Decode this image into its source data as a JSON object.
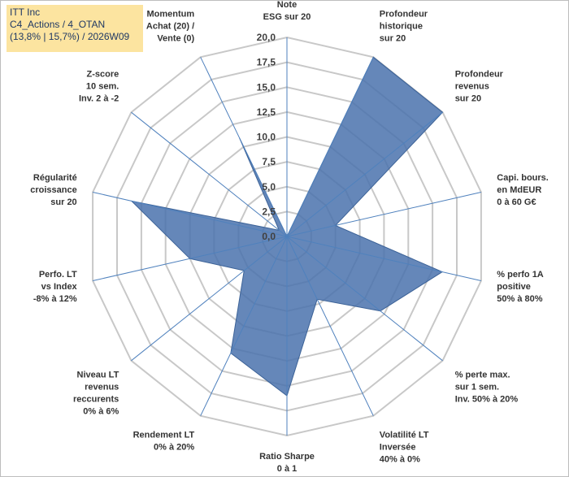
{
  "info_box": {
    "line1": "ITT Inc",
    "line2": "C4_Actions / 4_OTAN",
    "line3": "(13,8% | 15,7%) / 2026W09"
  },
  "chart_data": {
    "type": "radar",
    "title": "",
    "rmin": 0,
    "rmax": 20,
    "tick_labels": [
      "0,0",
      "2,5",
      "5,0",
      "7,5",
      "10,0",
      "12,5",
      "15,0",
      "17,5",
      "20,0"
    ],
    "grid": true,
    "series": [
      {
        "color": "#4a72ad",
        "axes": [
          {
            "label": [
              "Note",
              "ESG sur 20"
            ],
            "value": 0
          },
          {
            "label": [
              "Profondeur",
              "historique",
              "sur 20"
            ],
            "value": 20
          },
          {
            "label": [
              "Profondeur",
              "revenus",
              "sur 20"
            ],
            "value": 20
          },
          {
            "label": [
              "Capi. bours.",
              "en MdEUR",
              "0 à 60 G€"
            ],
            "value": 5
          },
          {
            "label": [
              "% perfo 1A",
              "positive",
              "50% à 80%"
            ],
            "value": 16
          },
          {
            "label": [
              "% perte max.",
              "sur 1 sem.",
              "Inv. 50% à 20%"
            ],
            "value": 12
          },
          {
            "label": [
              "Volatilité LT",
              "Inversée",
              "40% à 0%"
            ],
            "value": 7
          },
          {
            "label": [
              "Ratio Sharpe",
              "0 à 1"
            ],
            "value": 16
          },
          {
            "label": [
              "Rendement LT",
              "0% à 20%"
            ],
            "value": 13
          },
          {
            "label": [
              "Niveau LT",
              "revenus",
              "reccurents",
              "0% à 6%"
            ],
            "value": 5.5
          },
          {
            "label": [
              "Perfo. LT",
              "vs Index",
              "-8% à 12%"
            ],
            "value": 10
          },
          {
            "label": [
              "Régularité",
              "croissance",
              "sur 20"
            ],
            "value": 16
          },
          {
            "label": [
              "Z-score",
              "10 sem.",
              "Inv. 2 à -2"
            ],
            "value": 1
          },
          {
            "label": [
              "Momentum",
              "Achat (20) /",
              "Vente (0)"
            ],
            "value": 11
          }
        ]
      }
    ]
  }
}
